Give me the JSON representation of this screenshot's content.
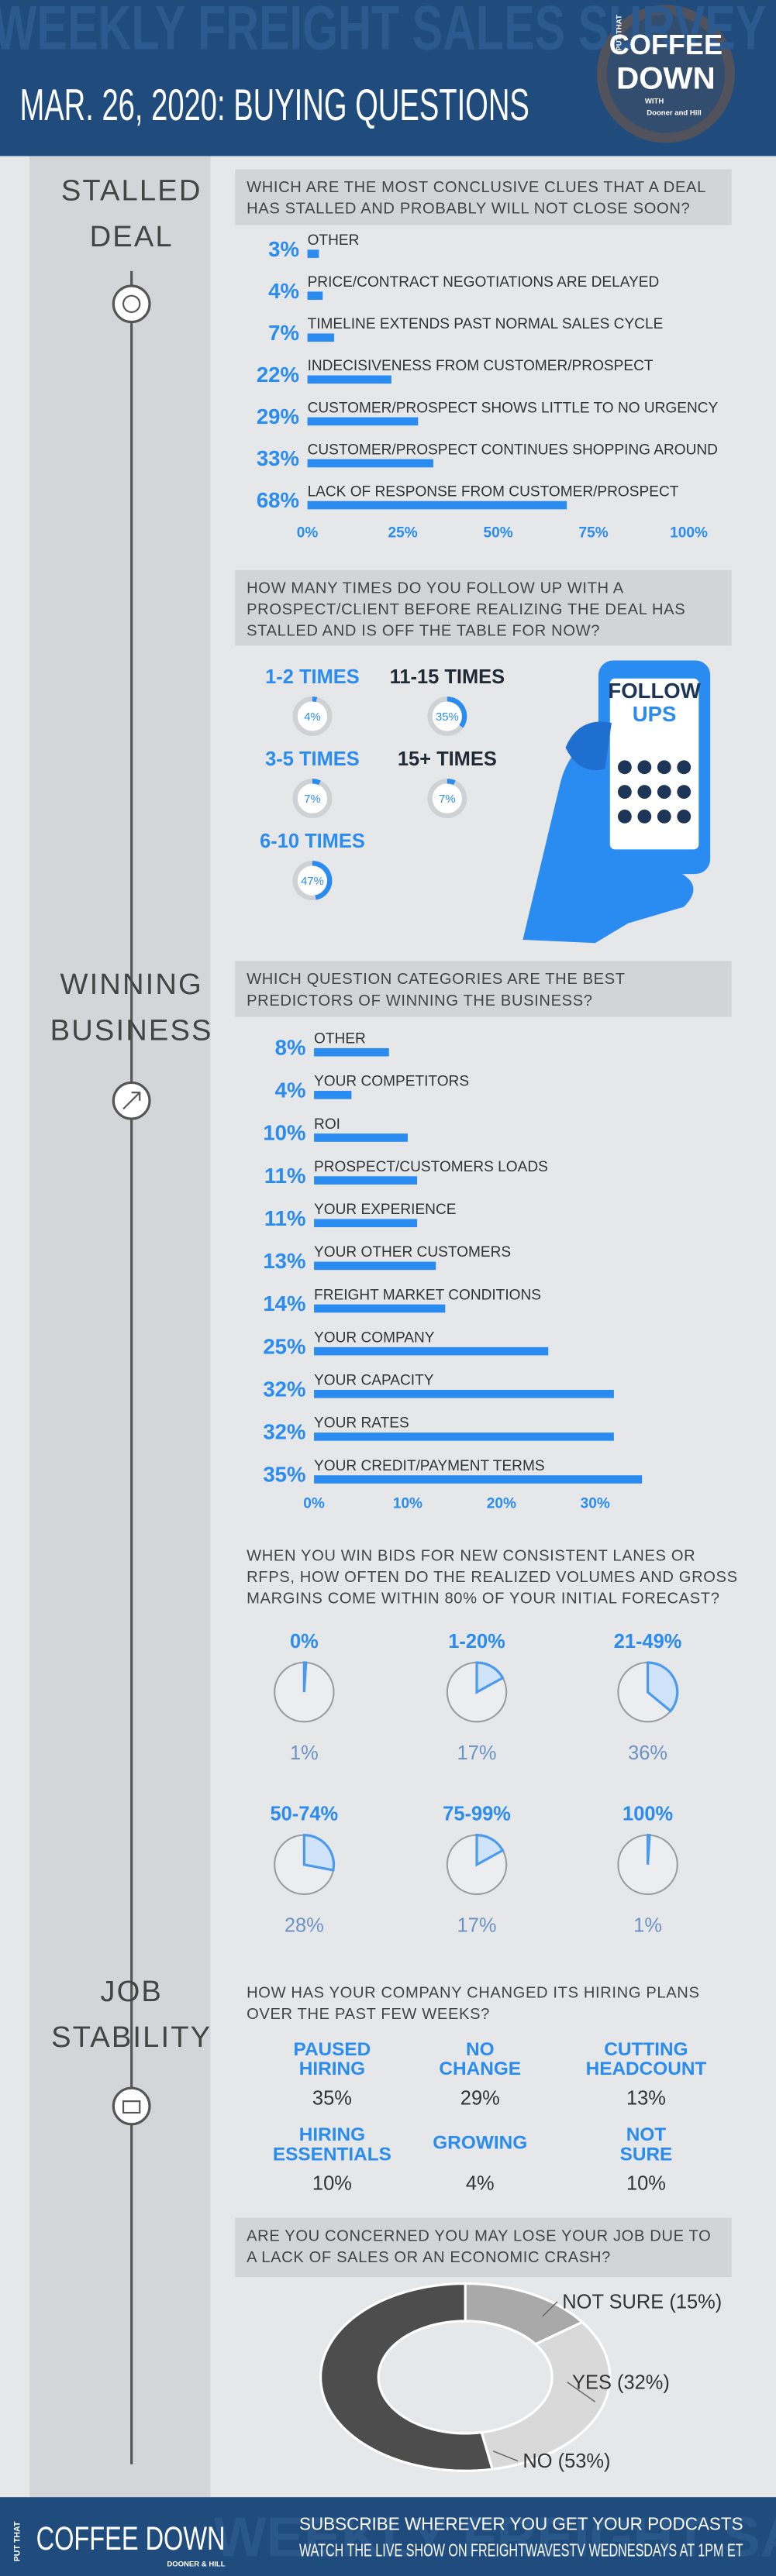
{
  "header": {
    "watermark": "WEEKLY FREIGHT SALES SURVEY",
    "title": "MAR. 26, 2020: BUYING QUESTIONS",
    "logo": [
      "PUT THAT",
      "COFFEE",
      "DOWN",
      "WITH",
      "Dooner and Hill"
    ]
  },
  "sections": [
    [
      "STALLED",
      "DEAL"
    ],
    [
      "WINNING",
      "BUSINESS"
    ],
    [
      "JOB",
      "STABILITY"
    ]
  ],
  "chart_data": [
    {
      "type": "bar",
      "orientation": "horizontal",
      "title": [
        "WHICH ARE THE MOST CONCLUSIVE CLUES THAT A DEAL",
        "HAS STALLED AND PROBABLY WILL NOT CLOSE SOON?"
      ],
      "categories": [
        "OTHER",
        "PRICE/CONTRACT NEGOTIATIONS ARE DELAYED",
        "TIMELINE EXTENDS PAST NORMAL SALES CYCLE",
        "INDECISIVENESS FROM CUSTOMER/PROSPECT",
        "CUSTOMER/PROSPECT SHOWS LITTLE TO NO URGENCY",
        "CUSTOMER/PROSPECT CONTINUES SHOPPING AROUND",
        "LACK OF RESPONSE FROM CUSTOMER/PROSPECT"
      ],
      "values": [
        3,
        4,
        7,
        22,
        29,
        33,
        68
      ],
      "value_labels": [
        "3%",
        "4%",
        "7%",
        "22%",
        "29%",
        "33%",
        "68%"
      ],
      "color": "#2a8cf0",
      "xlim": [
        0,
        100
      ],
      "xticks": [
        {
          "value": 0,
          "label": "0%"
        },
        {
          "value": 25,
          "label": "25%"
        },
        {
          "value": 50,
          "label": "50%"
        },
        {
          "value": 75,
          "label": "75%"
        },
        {
          "value": 100,
          "label": "100%"
        }
      ]
    },
    {
      "type": "donut-grid",
      "title": [
        "HOW MANY TIMES DO YOU FOLLOW UP WITH A",
        "PROSPECT/CLIENT BEFORE REALIZING THE DEAL HAS",
        "STALLED AND IS OFF THE TABLE FOR NOW?"
      ],
      "categories": [
        "1-2 TIMES",
        "11-15 TIMES",
        "3-5 TIMES",
        "15+ TIMES",
        "6-10 TIMES"
      ],
      "values": [
        4,
        35,
        7,
        7,
        47
      ],
      "value_labels": [
        "4%",
        "35%",
        "7%",
        "7%",
        "47%"
      ],
      "color": "#2a8cf0",
      "annotation": [
        "FOLLOW",
        "UPS"
      ]
    },
    {
      "type": "bar",
      "orientation": "horizontal",
      "title": [
        "WHICH QUESTION CATEGORIES ARE THE BEST",
        "PREDICTORS OF WINNING THE BUSINESS?"
      ],
      "categories": [
        "OTHER",
        "YOUR COMPETITORS",
        "ROI",
        "PROSPECT/CUSTOMERS LOADS",
        "YOUR EXPERIENCE",
        "YOUR OTHER CUSTOMERS",
        "FREIGHT MARKET CONDITIONS",
        "YOUR COMPANY",
        "YOUR CAPACITY",
        "YOUR RATES",
        "YOUR CREDIT/PAYMENT TERMS"
      ],
      "values": [
        8,
        4,
        10,
        11,
        11,
        13,
        14,
        25,
        32,
        32,
        35
      ],
      "value_labels": [
        "8%",
        "4%",
        "10%",
        "11%",
        "11%",
        "13%",
        "14%",
        "25%",
        "32%",
        "32%",
        "35%"
      ],
      "color": "#2a8cf0",
      "xlim": [
        0,
        40
      ],
      "xticks": [
        {
          "value": 0,
          "label": "0%"
        },
        {
          "value": 10,
          "label": "10%"
        },
        {
          "value": 20,
          "label": "20%"
        },
        {
          "value": 30,
          "label": "30%"
        }
      ]
    },
    {
      "type": "pie-grid",
      "title": [
        "WHEN YOU WIN BIDS FOR NEW CONSISTENT LANES OR",
        "RFPS, HOW OFTEN DO THE REALIZED VOLUMES AND GROSS",
        "MARGINS COME WITHIN 80% OF YOUR INITIAL FORECAST?"
      ],
      "categories": [
        "0%",
        "1-20%",
        "21-49%",
        "50-74%",
        "75-99%",
        "100%"
      ],
      "values": [
        1,
        17,
        36,
        28,
        17,
        1
      ],
      "value_labels": [
        "1%",
        "17%",
        "36%",
        "28%",
        "17%",
        "1%"
      ],
      "color": "#4a9af0"
    },
    {
      "type": "stat-grid",
      "title": [
        "HOW HAS YOUR COMPANY CHANGED ITS HIRING PLANS",
        "OVER THE PAST FEW WEEKS?"
      ],
      "categories": [
        [
          "PAUSED",
          "HIRING"
        ],
        [
          "NO",
          "CHANGE"
        ],
        [
          "CUTTING",
          "HEADCOUNT"
        ],
        [
          "HIRING",
          "ESSENTIALS"
        ],
        [
          "GROWING"
        ],
        [
          "NOT",
          "SURE"
        ]
      ],
      "values": [
        35,
        29,
        13,
        10,
        4,
        10
      ],
      "value_labels": [
        "35%",
        "29%",
        "13%",
        "10%",
        "4%",
        "10%"
      ],
      "color": "#2a8cf0"
    },
    {
      "type": "donut",
      "title": [
        "ARE YOU CONCERNED YOU MAY LOSE YOUR JOB DUE TO",
        "A LACK OF SALES OR AN ECONOMIC CRASH?"
      ],
      "categories": [
        "NOT SURE",
        "YES",
        "NO"
      ],
      "values": [
        15,
        32,
        53
      ],
      "value_labels": [
        "(15%)",
        "(32%)",
        "(53%)"
      ],
      "colors": [
        "#a9a9a9",
        "#d9d9d9",
        "#4d4d4d"
      ]
    }
  ],
  "footer": {
    "logo": [
      "PUT THAT",
      "COFFEE DOWN",
      "DOONER & HILL"
    ],
    "lines": [
      "SUBSCRIBE WHEREVER YOU GET YOUR PODCASTS",
      "WATCH THE LIVE SHOW ON FREIGHTWAVESTV WEDNESDAYS AT 1PM ET"
    ]
  }
}
